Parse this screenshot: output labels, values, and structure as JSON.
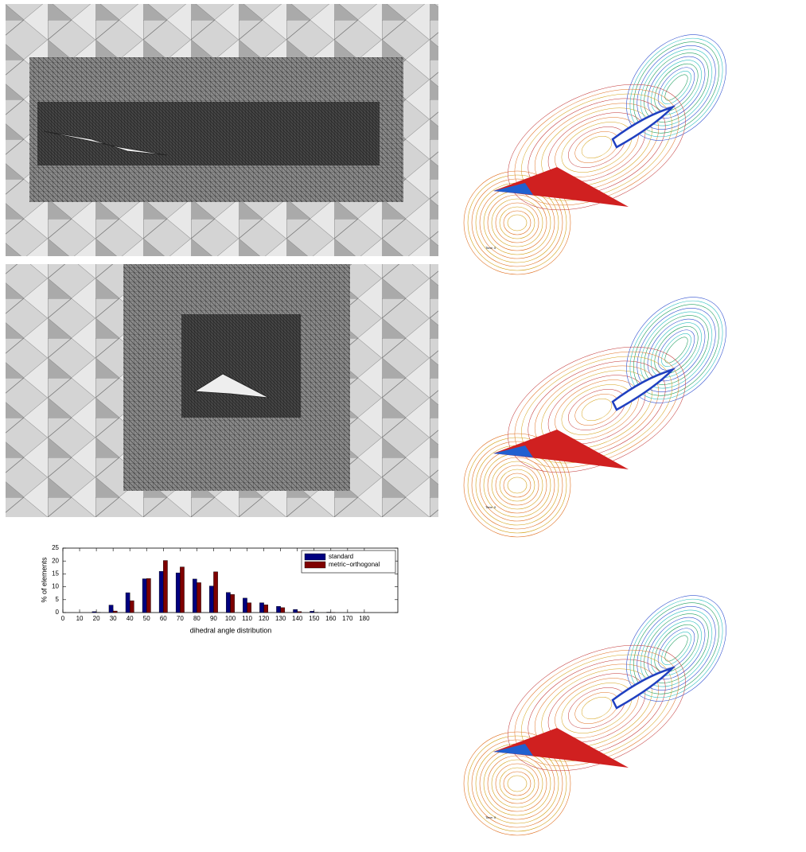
{
  "chart_data": {
    "type": "bar",
    "xlabel": "dihedral angle distribution",
    "ylabel": "% of elements",
    "x": [
      0,
      10,
      20,
      30,
      40,
      50,
      60,
      70,
      80,
      90,
      100,
      110,
      120,
      130,
      140,
      150,
      160,
      170,
      180
    ],
    "series": [
      {
        "name": "standard",
        "color": "#00007f",
        "values": [
          0,
          0,
          0.35,
          2.9,
          7.7,
          13.1,
          16.0,
          15.4,
          13.0,
          10.3,
          7.8,
          5.6,
          3.8,
          2.4,
          1.2,
          0.5,
          0.15,
          0,
          0
        ]
      },
      {
        "name": "metric−orthogonal",
        "color": "#7f0000",
        "values": [
          0,
          0,
          0.1,
          0.6,
          4.6,
          13.2,
          20.2,
          17.7,
          11.6,
          15.8,
          7.0,
          3.8,
          3.0,
          1.9,
          0.4,
          0.1,
          0.05,
          0,
          0
        ]
      }
    ],
    "xlim": [
      0,
      200
    ],
    "xticks": [
      0,
      10,
      20,
      30,
      40,
      50,
      60,
      70,
      80,
      90,
      100,
      110,
      120,
      130,
      140,
      150,
      160,
      170,
      180
    ],
    "ylim": [
      0,
      25
    ],
    "yticks": [
      0,
      5,
      10,
      15,
      20,
      25
    ],
    "grid": false,
    "legend": "upper right"
  },
  "panel_labels": [
    "Time: 0",
    "Time: 0",
    "Time: 0"
  ]
}
